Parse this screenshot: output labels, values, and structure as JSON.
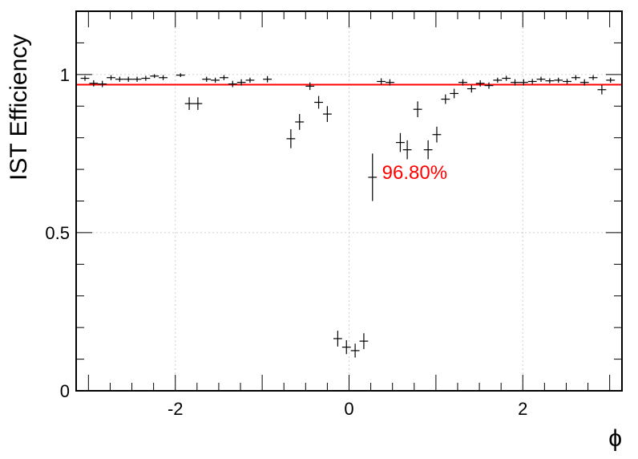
{
  "chart_data": {
    "type": "scatter",
    "title": "",
    "xlabel": "ϕ",
    "ylabel": "IST Efficiency",
    "xlim": [
      -3.1416,
      3.1416
    ],
    "ylim": [
      0,
      1.2
    ],
    "x_major_ticks": [
      -2,
      0,
      2
    ],
    "x_tick_labels": [
      "-2",
      "0",
      "2"
    ],
    "y_major_ticks": [
      0,
      0.5,
      1
    ],
    "y_tick_labels": [
      "0",
      "0.5",
      "1"
    ],
    "grid": true,
    "x_bin_halfwidth": 0.05,
    "fit_line": {
      "y": 0.968,
      "color": "#ff0000"
    },
    "annotation": {
      "text": "96.80%",
      "color": "#ff0000",
      "x": 0.38,
      "y": 0.67
    },
    "series": [
      {
        "marker_color": "#000000",
        "points": [
          {
            "x": -3.04,
            "y": 0.988,
            "err": 0.008
          },
          {
            "x": -2.94,
            "y": 0.972,
            "err": 0.01
          },
          {
            "x": -2.84,
            "y": 0.97,
            "err": 0.01
          },
          {
            "x": -2.74,
            "y": 0.99,
            "err": 0.008
          },
          {
            "x": -2.64,
            "y": 0.985,
            "err": 0.008
          },
          {
            "x": -2.54,
            "y": 0.985,
            "err": 0.008
          },
          {
            "x": -2.44,
            "y": 0.985,
            "err": 0.008
          },
          {
            "x": -2.34,
            "y": 0.988,
            "err": 0.008
          },
          {
            "x": -2.24,
            "y": 0.995,
            "err": 0.006
          },
          {
            "x": -2.14,
            "y": 0.99,
            "err": 0.008
          },
          {
            "x": -1.94,
            "y": 0.998,
            "err": 0.006
          },
          {
            "x": -1.84,
            "y": 0.908,
            "err": 0.02
          },
          {
            "x": -1.74,
            "y": 0.908,
            "err": 0.02
          },
          {
            "x": -1.64,
            "y": 0.985,
            "err": 0.008
          },
          {
            "x": -1.54,
            "y": 0.982,
            "err": 0.008
          },
          {
            "x": -1.44,
            "y": 0.99,
            "err": 0.008
          },
          {
            "x": -1.34,
            "y": 0.97,
            "err": 0.01
          },
          {
            "x": -1.24,
            "y": 0.975,
            "err": 0.01
          },
          {
            "x": -1.14,
            "y": 0.982,
            "err": 0.008
          },
          {
            "x": -0.94,
            "y": 0.985,
            "err": 0.01
          },
          {
            "x": -0.67,
            "y": 0.797,
            "err": 0.03
          },
          {
            "x": -0.57,
            "y": 0.85,
            "err": 0.025
          },
          {
            "x": -0.45,
            "y": 0.963,
            "err": 0.012
          },
          {
            "x": -0.35,
            "y": 0.912,
            "err": 0.02
          },
          {
            "x": -0.25,
            "y": 0.875,
            "err": 0.025
          },
          {
            "x": -0.13,
            "y": 0.165,
            "err": 0.025
          },
          {
            "x": -0.03,
            "y": 0.138,
            "err": 0.022
          },
          {
            "x": 0.07,
            "y": 0.127,
            "err": 0.022
          },
          {
            "x": 0.17,
            "y": 0.157,
            "err": 0.025
          },
          {
            "x": 0.27,
            "y": 0.675,
            "err": 0.075
          },
          {
            "x": 0.37,
            "y": 0.978,
            "err": 0.01
          },
          {
            "x": 0.47,
            "y": 0.975,
            "err": 0.01
          },
          {
            "x": 0.59,
            "y": 0.785,
            "err": 0.03
          },
          {
            "x": 0.67,
            "y": 0.762,
            "err": 0.03
          },
          {
            "x": 0.79,
            "y": 0.89,
            "err": 0.025
          },
          {
            "x": 0.91,
            "y": 0.762,
            "err": 0.03
          },
          {
            "x": 1.01,
            "y": 0.81,
            "err": 0.025
          },
          {
            "x": 1.11,
            "y": 0.922,
            "err": 0.015
          },
          {
            "x": 1.21,
            "y": 0.94,
            "err": 0.015
          },
          {
            "x": 1.31,
            "y": 0.975,
            "err": 0.01
          },
          {
            "x": 1.41,
            "y": 0.955,
            "err": 0.012
          },
          {
            "x": 1.51,
            "y": 0.972,
            "err": 0.01
          },
          {
            "x": 1.61,
            "y": 0.965,
            "err": 0.01
          },
          {
            "x": 1.71,
            "y": 0.982,
            "err": 0.008
          },
          {
            "x": 1.81,
            "y": 0.988,
            "err": 0.008
          },
          {
            "x": 1.91,
            "y": 0.975,
            "err": 0.01
          },
          {
            "x": 2.01,
            "y": 0.975,
            "err": 0.01
          },
          {
            "x": 2.11,
            "y": 0.978,
            "err": 0.008
          },
          {
            "x": 2.21,
            "y": 0.985,
            "err": 0.008
          },
          {
            "x": 2.31,
            "y": 0.98,
            "err": 0.008
          },
          {
            "x": 2.41,
            "y": 0.982,
            "err": 0.008
          },
          {
            "x": 2.51,
            "y": 0.978,
            "err": 0.008
          },
          {
            "x": 2.61,
            "y": 0.99,
            "err": 0.008
          },
          {
            "x": 2.71,
            "y": 0.975,
            "err": 0.01
          },
          {
            "x": 2.81,
            "y": 0.99,
            "err": 0.008
          },
          {
            "x": 2.91,
            "y": 0.952,
            "err": 0.015
          },
          {
            "x": 3.01,
            "y": 0.982,
            "err": 0.008
          }
        ]
      }
    ]
  }
}
